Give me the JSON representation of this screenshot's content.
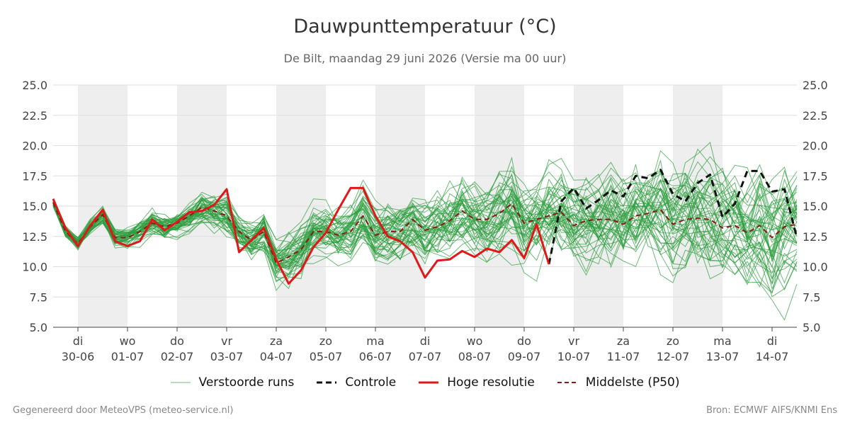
{
  "chart_data": {
    "type": "line",
    "title": "Dauwpunttemperatuur (°C)",
    "subtitle": "De Bilt, maandag 29 juni 2026 (Versie ma 00 uur)",
    "ylim": [
      5.0,
      25.0
    ],
    "y_ticks": [
      "5.0",
      "7.5",
      "10.0",
      "12.5",
      "15.0",
      "17.5",
      "20.0",
      "22.5",
      "25.0"
    ],
    "x_start": "2026-06-29 12:00",
    "x_end": "2026-07-14 12:00",
    "x_labels": [
      {
        "day": "di",
        "date": "30-06"
      },
      {
        "day": "wo",
        "date": "01-07"
      },
      {
        "day": "do",
        "date": "02-07"
      },
      {
        "day": "vr",
        "date": "03-07"
      },
      {
        "day": "za",
        "date": "04-07"
      },
      {
        "day": "zo",
        "date": "05-07"
      },
      {
        "day": "ma",
        "date": "06-07"
      },
      {
        "day": "di",
        "date": "07-07"
      },
      {
        "day": "wo",
        "date": "08-07"
      },
      {
        "day": "do",
        "date": "09-07"
      },
      {
        "day": "vr",
        "date": "10-07"
      },
      {
        "day": "za",
        "date": "11-07"
      },
      {
        "day": "zo",
        "date": "12-07"
      },
      {
        "day": "ma",
        "date": "13-07"
      },
      {
        "day": "di",
        "date": "14-07"
      }
    ],
    "ensemble_count": 50,
    "series": [
      {
        "name": "Hoge resolutie",
        "color": "#e01818",
        "x_hours": [
          0,
          6,
          12,
          18,
          24,
          30,
          36,
          42,
          48,
          54,
          60,
          66,
          72,
          78,
          84,
          90,
          96,
          102,
          108,
          114,
          120,
          126,
          132,
          138,
          144,
          150,
          156,
          162,
          168,
          174,
          180,
          186,
          192,
          198,
          204,
          210,
          216,
          222,
          228,
          234,
          240
        ],
        "values": [
          15.6,
          13.2,
          11.7,
          13.4,
          14.7,
          12.1,
          11.7,
          12.1,
          13.9,
          13.0,
          13.7,
          14.5,
          14.6,
          15.1,
          16.4,
          11.2,
          12.2,
          13.2,
          10.6,
          8.6,
          9.7,
          11.6,
          12.8,
          14.7,
          16.5,
          16.5,
          14.2,
          12.5,
          12.1,
          11.2,
          9.1,
          10.5,
          10.6,
          11.3,
          10.8,
          11.5,
          11.2,
          12.2,
          10.7,
          13.5,
          10.2
        ]
      },
      {
        "name": "Controle",
        "color": "#111111",
        "x_hours": [
          240,
          246,
          252,
          258,
          264,
          270,
          276,
          282,
          288,
          294,
          300,
          306,
          312,
          318,
          324,
          330,
          336,
          342,
          348,
          354,
          360
        ],
        "values": [
          10.2,
          15.4,
          16.5,
          14.8,
          15.5,
          16.3,
          15.8,
          17.5,
          17.3,
          18.0,
          16.0,
          15.4,
          16.9,
          17.6,
          14.1,
          15.2,
          17.9,
          17.9,
          16.2,
          16.4,
          12.4
        ]
      },
      {
        "name": "Middelste (P50)",
        "color": "#8b1a1a",
        "x_hours": [
          0,
          6,
          12,
          18,
          24,
          30,
          36,
          42,
          48,
          54,
          60,
          66,
          72,
          78,
          84,
          90,
          96,
          102,
          108,
          114,
          120,
          126,
          132,
          138,
          144,
          150,
          156,
          162,
          168,
          174,
          180,
          186,
          192,
          198,
          204,
          210,
          216,
          222,
          228,
          234,
          240,
          246,
          252,
          258,
          264,
          270,
          276,
          282,
          288,
          294,
          300,
          306,
          312,
          318,
          324,
          330,
          336,
          342,
          348,
          354,
          360
        ],
        "values": [
          15.3,
          12.9,
          11.9,
          13.3,
          14.3,
          12.4,
          12.4,
          12.9,
          13.6,
          13.3,
          13.6,
          14.2,
          14.9,
          14.6,
          14.2,
          12.9,
          12.2,
          12.9,
          10.3,
          10.8,
          11.4,
          12.9,
          12.9,
          12.6,
          12.9,
          14.2,
          12.6,
          12.9,
          12.9,
          13.9,
          13.0,
          13.3,
          13.8,
          14.6,
          13.9,
          13.9,
          14.4,
          15.2,
          13.6,
          13.9,
          14.2,
          14.5,
          13.4,
          13.8,
          13.9,
          13.9,
          13.5,
          14.2,
          14.4,
          14.7,
          13.5,
          13.9,
          14.0,
          13.9,
          13.2,
          13.4,
          12.8,
          13.4,
          12.4,
          13.3,
          13.5
        ]
      }
    ],
    "legend": {
      "placement": "bottom",
      "items": [
        {
          "label": "Verstoorde runs",
          "color": "#2e9e3e",
          "style": "thin"
        },
        {
          "label": "Controle",
          "color": "#111111",
          "style": "dashed"
        },
        {
          "label": "Hoge resolutie",
          "color": "#e01818",
          "style": "solid"
        },
        {
          "label": "Middelste (P50)",
          "color": "#8b1a1a",
          "style": "dashed"
        }
      ]
    },
    "grid": true,
    "colors": {
      "shade": "#eeeeee",
      "grid": "#dddddd",
      "axis": "#444444",
      "ensemble": "#2e9e3e"
    }
  },
  "footer": {
    "left": "Gegenereerd door MeteoVPS (meteo-service.nl)",
    "right": "Bron: ECMWF AIFS/KNMI Ens"
  }
}
